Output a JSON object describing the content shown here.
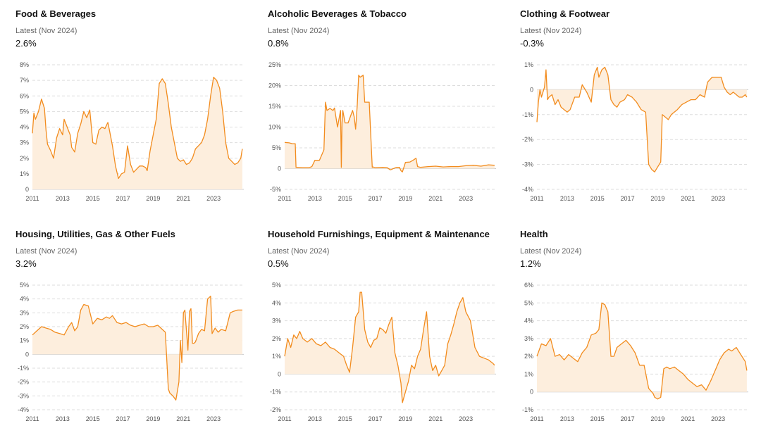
{
  "colors": {
    "line": "#f28c1e",
    "fill": "#fdeedd",
    "grid": "#dddddd",
    "zero": "#cccccc"
  },
  "chart_data": [
    {
      "type": "area",
      "title": "Food & Beverages",
      "subtitle": "Latest (Nov 2024)",
      "latest": "2.6%",
      "y_ticks": [
        0,
        1,
        2,
        3,
        4,
        5,
        6,
        7,
        8
      ],
      "y_tick_labels": [
        "0",
        "1%",
        "2%",
        "3%",
        "4%",
        "5%",
        "6%",
        "7%",
        "8%"
      ],
      "ylim": [
        0,
        8
      ],
      "x_ticks": [
        2011,
        2013,
        2015,
        2017,
        2019,
        2021,
        2023
      ],
      "x_tick_labels": [
        "2011",
        "2013",
        "2015",
        "2017",
        "2019",
        "2021",
        "2023"
      ],
      "xlim": [
        2011,
        2025
      ],
      "x": [
        2011.0,
        2011.1,
        2011.2,
        2011.4,
        2011.6,
        2011.8,
        2011.9,
        2012.0,
        2012.1,
        2012.2,
        2012.4,
        2012.6,
        2012.8,
        2013.0,
        2013.1,
        2013.3,
        2013.5,
        2013.6,
        2013.8,
        2014.0,
        2014.2,
        2014.4,
        2014.6,
        2014.8,
        2015.0,
        2015.2,
        2015.4,
        2015.6,
        2015.8,
        2016.0,
        2016.1,
        2016.3,
        2016.5,
        2016.7,
        2016.9,
        2017.1,
        2017.3,
        2017.5,
        2017.7,
        2017.9,
        2018.1,
        2018.3,
        2018.5,
        2018.6,
        2018.8,
        2019.0,
        2019.2,
        2019.4,
        2019.6,
        2019.8,
        2020.0,
        2020.2,
        2020.4,
        2020.6,
        2020.8,
        2021.0,
        2021.2,
        2021.4,
        2021.6,
        2021.8,
        2022.0,
        2022.2,
        2022.4,
        2022.6,
        2022.8,
        2023.0,
        2023.2,
        2023.4,
        2023.6,
        2023.8,
        2024.0,
        2024.2,
        2024.4,
        2024.6,
        2024.8,
        2024.9
      ],
      "y": [
        3.6,
        4.9,
        4.5,
        5.0,
        5.8,
        5.2,
        3.8,
        2.9,
        2.7,
        2.5,
        2.0,
        3.3,
        3.9,
        3.5,
        4.5,
        4.0,
        3.5,
        2.7,
        2.4,
        3.6,
        4.2,
        5.0,
        4.6,
        5.1,
        3.0,
        2.9,
        3.8,
        4.0,
        3.9,
        4.3,
        3.8,
        2.8,
        1.5,
        0.7,
        1.0,
        1.1,
        2.8,
        1.6,
        1.1,
        1.3,
        1.5,
        1.5,
        1.4,
        1.2,
        2.5,
        3.5,
        4.5,
        6.8,
        7.1,
        6.8,
        5.5,
        4.0,
        3.0,
        2.0,
        1.8,
        1.9,
        1.6,
        1.7,
        2.0,
        2.6,
        2.8,
        3.0,
        3.5,
        4.5,
        6.0,
        7.2,
        7.0,
        6.5,
        5.0,
        3.0,
        2.0,
        1.8,
        1.6,
        1.7,
        2.0,
        2.6
      ]
    },
    {
      "type": "area",
      "title": "Alcoholic Beverages & Tobacco",
      "subtitle": "Latest (Nov 2024)",
      "latest": "0.8%",
      "y_ticks": [
        -5,
        0,
        5,
        10,
        15,
        20,
        25
      ],
      "y_tick_labels": [
        "-5%",
        "0",
        "5%",
        "10%",
        "15%",
        "20%",
        "25%"
      ],
      "ylim": [
        -5,
        25
      ],
      "x_ticks": [
        2011,
        2013,
        2015,
        2017,
        2019,
        2021,
        2023
      ],
      "x_tick_labels": [
        "2011",
        "2013",
        "2015",
        "2017",
        "2019",
        "2021",
        "2023"
      ],
      "xlim": [
        2011,
        2025
      ],
      "x": [
        2011.0,
        2011.3,
        2011.5,
        2011.7,
        2011.75,
        2012.2,
        2012.6,
        2012.8,
        2013.0,
        2013.3,
        2013.6,
        2013.7,
        2013.8,
        2014.0,
        2014.2,
        2014.3,
        2014.5,
        2014.7,
        2014.75,
        2014.8,
        2014.85,
        2015.0,
        2015.2,
        2015.5,
        2015.6,
        2015.7,
        2015.8,
        2015.9,
        2016.0,
        2016.2,
        2016.3,
        2016.6,
        2016.8,
        2016.85,
        2017.0,
        2017.5,
        2017.8,
        2018.0,
        2018.4,
        2018.6,
        2018.7,
        2018.8,
        2019.0,
        2019.3,
        2019.5,
        2019.7,
        2019.8,
        2020.0,
        2020.5,
        2021.0,
        2021.5,
        2022.0,
        2022.5,
        2023.0,
        2023.5,
        2024.0,
        2024.5,
        2024.9
      ],
      "y": [
        6.3,
        6.2,
        6.0,
        6.0,
        0.3,
        0.2,
        0.2,
        0.5,
        2.0,
        2.0,
        4.5,
        16.0,
        14.0,
        14.5,
        14.0,
        14.6,
        10.0,
        14.0,
        0.3,
        11.0,
        14.0,
        11.0,
        11.0,
        14.0,
        12.5,
        9.5,
        15.0,
        22.5,
        22.0,
        22.5,
        16.0,
        16.0,
        0.3,
        0.4,
        0.2,
        0.3,
        0.2,
        -0.3,
        0.3,
        0.3,
        -0.5,
        -0.8,
        1.5,
        1.6,
        2.0,
        2.5,
        0.5,
        0.3,
        0.5,
        0.6,
        0.4,
        0.5,
        0.5,
        0.7,
        0.8,
        0.6,
        0.9,
        0.8
      ]
    },
    {
      "type": "area",
      "title": "Clothing & Footwear",
      "subtitle": "Latest (Nov 2024)",
      "latest": "-0.3%",
      "y_ticks": [
        -4,
        -3,
        -2,
        -1,
        0,
        1
      ],
      "y_tick_labels": [
        "-4%",
        "-3%",
        "-2%",
        "-1%",
        "0",
        "1%"
      ],
      "ylim": [
        -4,
        1
      ],
      "x_ticks": [
        2011,
        2013,
        2015,
        2017,
        2019,
        2021,
        2023
      ],
      "x_tick_labels": [
        "2011",
        "2013",
        "2015",
        "2017",
        "2019",
        "2021",
        "2023"
      ],
      "xlim": [
        2011,
        2025
      ],
      "x": [
        2011.0,
        2011.1,
        2011.2,
        2011.3,
        2011.5,
        2011.6,
        2011.7,
        2011.8,
        2012.0,
        2012.2,
        2012.4,
        2012.6,
        2012.8,
        2013.0,
        2013.2,
        2013.5,
        2013.8,
        2014.0,
        2014.3,
        2014.6,
        2014.8,
        2015.0,
        2015.1,
        2015.3,
        2015.5,
        2015.7,
        2015.9,
        2016.1,
        2016.3,
        2016.5,
        2016.8,
        2017.0,
        2017.3,
        2017.6,
        2017.9,
        2018.2,
        2018.4,
        2018.5,
        2018.6,
        2018.8,
        2019.0,
        2019.2,
        2019.3,
        2019.5,
        2019.7,
        2019.9,
        2020.1,
        2020.3,
        2020.6,
        2020.9,
        2021.2,
        2021.5,
        2021.8,
        2022.1,
        2022.3,
        2022.6,
        2022.9,
        2023.2,
        2023.4,
        2023.6,
        2023.8,
        2024.0,
        2024.2,
        2024.4,
        2024.6,
        2024.8,
        2024.9
      ],
      "y": [
        -1.3,
        -0.5,
        0.0,
        -0.3,
        0.1,
        0.8,
        -0.4,
        -0.3,
        -0.2,
        -0.6,
        -0.4,
        -0.7,
        -0.8,
        -0.9,
        -0.8,
        -0.3,
        -0.3,
        0.2,
        -0.1,
        -0.5,
        0.6,
        0.9,
        0.5,
        0.8,
        0.9,
        0.6,
        -0.4,
        -0.6,
        -0.7,
        -0.5,
        -0.4,
        -0.2,
        -0.3,
        -0.5,
        -0.8,
        -0.9,
        -3.0,
        -3.1,
        -3.2,
        -3.3,
        -3.1,
        -2.9,
        -1.0,
        -1.1,
        -1.2,
        -1.0,
        -0.9,
        -0.8,
        -0.6,
        -0.5,
        -0.4,
        -0.4,
        -0.2,
        -0.3,
        0.3,
        0.5,
        0.5,
        0.5,
        0.1,
        -0.1,
        -0.2,
        -0.1,
        -0.2,
        -0.3,
        -0.3,
        -0.2,
        -0.3
      ]
    },
    {
      "type": "area",
      "title": "Housing, Utilities, Gas & Other Fuels",
      "subtitle": "Latest (Nov 2024)",
      "latest": "3.2%",
      "y_ticks": [
        -4,
        -3,
        -2,
        -1,
        0,
        1,
        2,
        3,
        4,
        5
      ],
      "y_tick_labels": [
        "-4%",
        "-3%",
        "-2%",
        "-1%",
        "0",
        "1%",
        "2%",
        "3%",
        "4%",
        "5%"
      ],
      "ylim": [
        -4,
        5
      ],
      "x_ticks": [
        2011,
        2013,
        2015,
        2017,
        2019,
        2021,
        2023
      ],
      "x_tick_labels": [
        "2011",
        "2013",
        "2015",
        "2017",
        "2019",
        "2021",
        "2023"
      ],
      "xlim": [
        2011,
        2025
      ],
      "x": [
        2011.0,
        2011.3,
        2011.6,
        2011.9,
        2012.2,
        2012.5,
        2012.8,
        2013.1,
        2013.4,
        2013.6,
        2013.8,
        2014.0,
        2014.2,
        2014.4,
        2014.7,
        2015.0,
        2015.3,
        2015.6,
        2015.9,
        2016.1,
        2016.3,
        2016.6,
        2016.9,
        2017.2,
        2017.5,
        2017.8,
        2018.1,
        2018.4,
        2018.7,
        2019.0,
        2019.3,
        2019.6,
        2019.8,
        2020.0,
        2020.1,
        2020.3,
        2020.5,
        2020.7,
        2020.8,
        2020.9,
        2021.0,
        2021.1,
        2021.3,
        2021.4,
        2021.5,
        2021.6,
        2021.7,
        2021.8,
        2022.0,
        2022.2,
        2022.4,
        2022.6,
        2022.8,
        2022.9,
        2023.1,
        2023.3,
        2023.5,
        2023.8,
        2024.1,
        2024.3,
        2024.6,
        2024.9
      ],
      "y": [
        1.4,
        1.7,
        2.0,
        1.9,
        1.8,
        1.6,
        1.5,
        1.4,
        2.0,
        2.3,
        1.7,
        2.0,
        3.2,
        3.6,
        3.5,
        2.2,
        2.6,
        2.5,
        2.7,
        2.6,
        2.8,
        2.3,
        2.2,
        2.3,
        2.1,
        2.0,
        2.1,
        2.2,
        2.0,
        2.0,
        2.1,
        1.8,
        1.6,
        -2.5,
        -2.8,
        -3.0,
        -3.3,
        -2.0,
        1.0,
        -0.6,
        3.0,
        3.2,
        0.3,
        3.1,
        3.3,
        0.8,
        0.8,
        0.9,
        1.5,
        1.8,
        1.7,
        4.0,
        4.2,
        1.5,
        1.9,
        1.6,
        1.8,
        1.7,
        3.0,
        3.1,
        3.2,
        3.2
      ]
    },
    {
      "type": "area",
      "title": "Household Furnishings, Equipment & Maintenance",
      "subtitle": "Latest (Nov 2024)",
      "latest": "0.5%",
      "y_ticks": [
        -2,
        -1,
        0,
        1,
        2,
        3,
        4,
        5
      ],
      "y_tick_labels": [
        "-2%",
        "-1%",
        "0",
        "1%",
        "2%",
        "3%",
        "4%",
        "5%"
      ],
      "ylim": [
        -2,
        5
      ],
      "x_ticks": [
        2011,
        2013,
        2015,
        2017,
        2019,
        2021,
        2023
      ],
      "x_tick_labels": [
        "2011",
        "2013",
        "2015",
        "2017",
        "2019",
        "2021",
        "2023"
      ],
      "xlim": [
        2011,
        2025
      ],
      "x": [
        2011.0,
        2011.2,
        2011.4,
        2011.6,
        2011.8,
        2012.0,
        2012.2,
        2012.5,
        2012.8,
        2013.1,
        2013.4,
        2013.7,
        2014.0,
        2014.3,
        2014.6,
        2014.9,
        2015.1,
        2015.3,
        2015.5,
        2015.7,
        2015.9,
        2016.0,
        2016.1,
        2016.3,
        2016.5,
        2016.7,
        2016.9,
        2017.1,
        2017.3,
        2017.5,
        2017.7,
        2017.9,
        2018.1,
        2018.3,
        2018.5,
        2018.7,
        2018.8,
        2019.0,
        2019.2,
        2019.4,
        2019.6,
        2019.8,
        2020.0,
        2020.2,
        2020.4,
        2020.6,
        2020.8,
        2021.0,
        2021.2,
        2021.4,
        2021.6,
        2021.8,
        2022.0,
        2022.2,
        2022.4,
        2022.6,
        2022.8,
        2023.0,
        2023.3,
        2023.6,
        2023.9,
        2024.2,
        2024.5,
        2024.8,
        2024.9
      ],
      "y": [
        1.0,
        2.0,
        1.5,
        2.2,
        2.0,
        2.4,
        2.0,
        1.8,
        2.0,
        1.7,
        1.6,
        1.8,
        1.5,
        1.4,
        1.2,
        1.0,
        0.5,
        0.1,
        1.5,
        3.2,
        3.5,
        4.6,
        4.6,
        2.5,
        1.8,
        1.5,
        1.9,
        2.0,
        2.6,
        2.5,
        2.3,
        2.8,
        3.2,
        1.2,
        0.5,
        -0.5,
        -1.6,
        -1.0,
        -0.4,
        0.5,
        0.3,
        1.0,
        1.4,
        2.5,
        3.5,
        1.0,
        0.2,
        0.5,
        -0.1,
        0.2,
        0.5,
        1.7,
        2.2,
        2.8,
        3.5,
        4.0,
        4.3,
        3.5,
        3.0,
        1.5,
        1.0,
        0.9,
        0.8,
        0.6,
        0.5
      ]
    },
    {
      "type": "area",
      "title": "Health",
      "subtitle": "Latest (Nov 2024)",
      "latest": "1.2%",
      "y_ticks": [
        -1,
        0,
        1,
        2,
        3,
        4,
        5,
        6
      ],
      "y_tick_labels": [
        "-1%",
        "0",
        "1%",
        "2%",
        "3%",
        "4%",
        "5%",
        "6%"
      ],
      "ylim": [
        -1,
        6
      ],
      "x_ticks": [
        2011,
        2013,
        2015,
        2017,
        2019,
        2021,
        2023
      ],
      "x_tick_labels": [
        "2011",
        "2013",
        "2015",
        "2017",
        "2019",
        "2021",
        "2023"
      ],
      "xlim": [
        2011,
        2025
      ],
      "x": [
        2011.0,
        2011.3,
        2011.6,
        2011.9,
        2012.2,
        2012.5,
        2012.8,
        2013.1,
        2013.4,
        2013.7,
        2014.0,
        2014.3,
        2014.6,
        2014.9,
        2015.1,
        2015.3,
        2015.5,
        2015.7,
        2015.9,
        2016.1,
        2016.3,
        2016.6,
        2016.9,
        2017.2,
        2017.5,
        2017.8,
        2018.1,
        2018.4,
        2018.7,
        2018.8,
        2019.0,
        2019.2,
        2019.4,
        2019.6,
        2019.8,
        2020.1,
        2020.4,
        2020.7,
        2021.0,
        2021.3,
        2021.6,
        2021.9,
        2022.2,
        2022.5,
        2022.8,
        2023.1,
        2023.4,
        2023.7,
        2023.9,
        2024.2,
        2024.5,
        2024.8,
        2024.9
      ],
      "y": [
        2.0,
        2.7,
        2.6,
        3.0,
        2.0,
        2.1,
        1.8,
        2.1,
        1.9,
        1.7,
        2.2,
        2.5,
        3.2,
        3.3,
        3.5,
        5.0,
        4.9,
        4.5,
        2.0,
        2.0,
        2.5,
        2.7,
        2.9,
        2.6,
        2.2,
        1.5,
        1.5,
        0.2,
        -0.1,
        -0.3,
        -0.4,
        -0.3,
        1.3,
        1.4,
        1.3,
        1.4,
        1.2,
        1.0,
        0.7,
        0.5,
        0.3,
        0.4,
        0.1,
        0.6,
        1.2,
        1.8,
        2.2,
        2.4,
        2.3,
        2.5,
        2.1,
        1.7,
        1.2
      ]
    }
  ]
}
